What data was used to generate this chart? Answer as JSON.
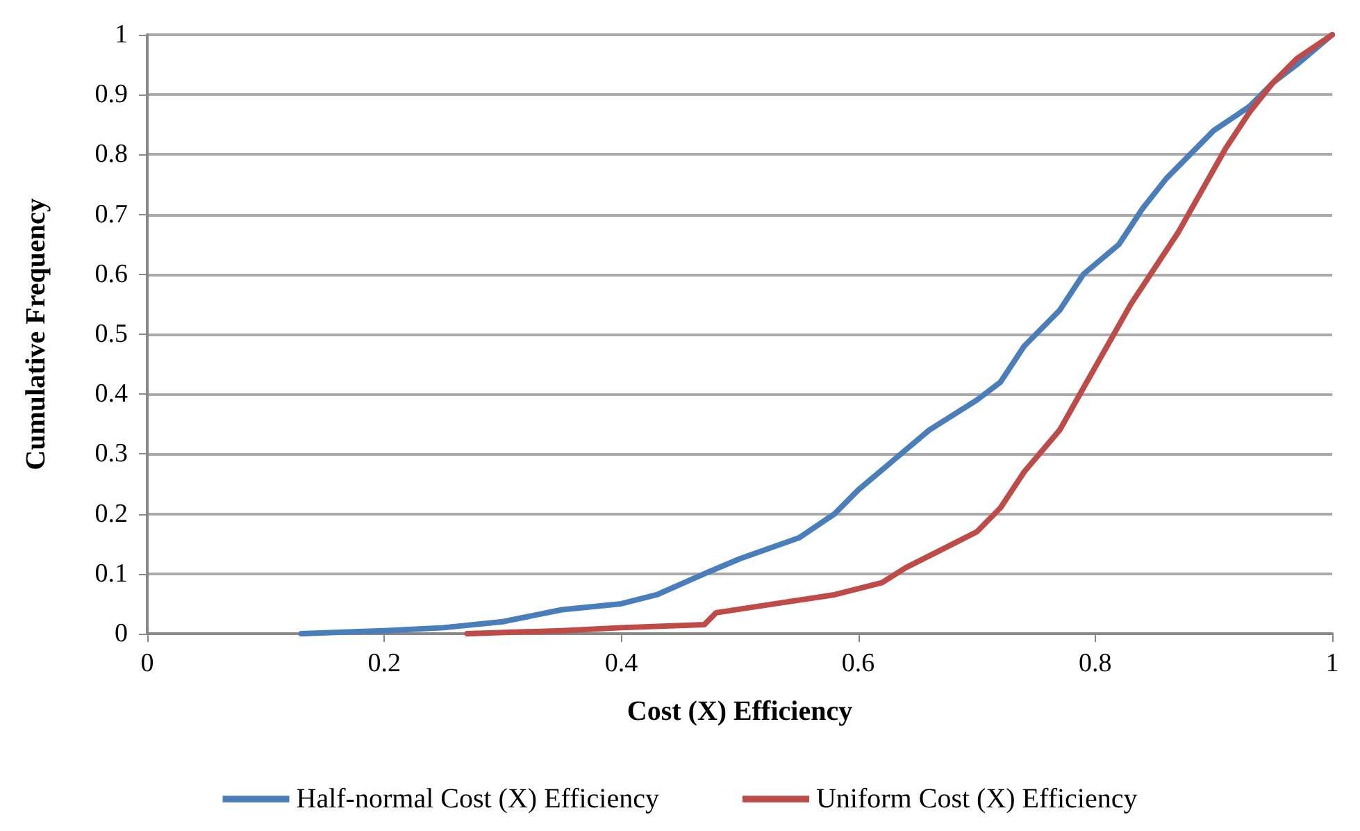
{
  "chart_data": {
    "type": "line",
    "xlabel": "Cost (X) Efficiency",
    "ylabel": "Cumulative Frequency",
    "xlim": [
      0,
      1
    ],
    "xticks": [
      0,
      0.2,
      0.4,
      0.6,
      0.8,
      1
    ],
    "ylim": [
      0,
      1
    ],
    "yticks": [
      0,
      0.1,
      0.2,
      0.3,
      0.4,
      0.5,
      0.6,
      0.7,
      0.8,
      0.9,
      1
    ],
    "grid": "y",
    "legend": "bottom",
    "marker": "none",
    "line_style": "solid",
    "series": [
      {
        "name": "Half-normal Cost (X) Efficiency",
        "color": "#4a7ebb",
        "x": [
          0.13,
          0.2,
          0.25,
          0.3,
          0.35,
          0.4,
          0.43,
          0.47,
          0.5,
          0.55,
          0.58,
          0.6,
          0.63,
          0.66,
          0.7,
          0.72,
          0.74,
          0.77,
          0.79,
          0.82,
          0.84,
          0.86,
          0.88,
          0.9,
          0.93,
          0.95,
          0.97,
          1
        ],
        "values": [
          0,
          0.005,
          0.01,
          0.02,
          0.04,
          0.05,
          0.065,
          0.1,
          0.125,
          0.16,
          0.2,
          0.24,
          0.29,
          0.34,
          0.39,
          0.42,
          0.48,
          0.54,
          0.6,
          0.65,
          0.71,
          0.76,
          0.8,
          0.84,
          0.88,
          0.92,
          0.95,
          1
        ]
      },
      {
        "name": "Uniform Cost (X) Efficiency",
        "color": "#be4b48",
        "x": [
          0.27,
          0.35,
          0.4,
          0.47,
          0.48,
          0.53,
          0.58,
          0.62,
          0.64,
          0.67,
          0.7,
          0.72,
          0.74,
          0.77,
          0.79,
          0.81,
          0.83,
          0.85,
          0.87,
          0.89,
          0.91,
          0.93,
          0.95,
          0.97,
          1
        ],
        "values": [
          0,
          0.005,
          0.01,
          0.015,
          0.035,
          0.05,
          0.065,
          0.085,
          0.11,
          0.14,
          0.17,
          0.21,
          0.27,
          0.34,
          0.41,
          0.48,
          0.55,
          0.61,
          0.67,
          0.74,
          0.81,
          0.87,
          0.92,
          0.96,
          1
        ]
      }
    ]
  }
}
